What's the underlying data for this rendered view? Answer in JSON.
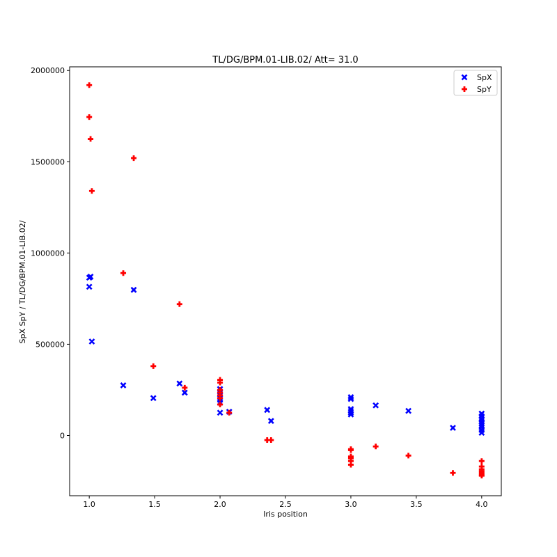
{
  "chart_data": {
    "type": "scatter",
    "title": "TL/DG/BPM.01-LIB.02/ Att= 31.0",
    "xlabel": "Iris position",
    "ylabel": "SpX SpY / TL/DG/BPM.01-LIB.02/",
    "xlim": [
      0.85,
      4.15
    ],
    "ylim": [
      -330000,
      2020000
    ],
    "xticks": [
      1.0,
      1.5,
      2.0,
      2.5,
      3.0,
      3.5,
      4.0
    ],
    "xtick_labels": [
      "1.0",
      "1.5",
      "2.0",
      "2.5",
      "3.0",
      "3.5",
      "4.0"
    ],
    "yticks": [
      0,
      500000,
      1000000,
      1500000,
      2000000
    ],
    "ytick_labels": [
      "0",
      "500000",
      "1000000",
      "1500000",
      "2000000"
    ],
    "grid": false,
    "legend_position": "top-right",
    "series": [
      {
        "name": "SpX",
        "color": "#0000ff",
        "marker": "x",
        "points": [
          [
            1.0,
            865000
          ],
          [
            1.01,
            870000
          ],
          [
            1.0,
            815000
          ],
          [
            1.02,
            515000
          ],
          [
            1.26,
            275000
          ],
          [
            1.34,
            798000
          ],
          [
            1.49,
            205000
          ],
          [
            1.69,
            285000
          ],
          [
            1.73,
            235000
          ],
          [
            2.0,
            255000
          ],
          [
            2.0,
            240000
          ],
          [
            2.0,
            225000
          ],
          [
            2.0,
            210000
          ],
          [
            2.0,
            195000
          ],
          [
            2.0,
            180000
          ],
          [
            2.0,
            125000
          ],
          [
            2.07,
            130000
          ],
          [
            2.36,
            140000
          ],
          [
            2.39,
            80000
          ],
          [
            3.0,
            210000
          ],
          [
            3.0,
            200000
          ],
          [
            3.0,
            145000
          ],
          [
            3.0,
            135000
          ],
          [
            3.0,
            125000
          ],
          [
            3.0,
            115000
          ],
          [
            3.19,
            165000
          ],
          [
            3.44,
            135000
          ],
          [
            3.78,
            42000
          ],
          [
            4.0,
            120000
          ],
          [
            4.0,
            105000
          ],
          [
            4.0,
            90000
          ],
          [
            4.0,
            75000
          ],
          [
            4.0,
            65000
          ],
          [
            4.0,
            55000
          ],
          [
            4.0,
            45000
          ],
          [
            4.0,
            30000
          ],
          [
            4.0,
            15000
          ]
        ]
      },
      {
        "name": "SpY",
        "color": "#ff0000",
        "marker": "+",
        "points": [
          [
            1.0,
            1920000
          ],
          [
            1.0,
            1745000
          ],
          [
            1.01,
            1625000
          ],
          [
            1.02,
            1340000
          ],
          [
            1.26,
            890000
          ],
          [
            1.34,
            1520000
          ],
          [
            1.49,
            380000
          ],
          [
            1.69,
            720000
          ],
          [
            1.73,
            262000
          ],
          [
            2.0,
            305000
          ],
          [
            2.0,
            290000
          ],
          [
            2.0,
            250000
          ],
          [
            2.0,
            235000
          ],
          [
            2.0,
            220000
          ],
          [
            2.0,
            205000
          ],
          [
            2.0,
            170000
          ],
          [
            2.07,
            125000
          ],
          [
            2.36,
            -25000
          ],
          [
            2.39,
            -25000
          ],
          [
            3.0,
            -75000
          ],
          [
            3.0,
            -80000
          ],
          [
            3.0,
            -115000
          ],
          [
            3.0,
            -125000
          ],
          [
            3.0,
            -140000
          ],
          [
            3.0,
            -160000
          ],
          [
            3.19,
            -60000
          ],
          [
            3.44,
            -110000
          ],
          [
            3.78,
            -205000
          ],
          [
            4.0,
            -140000
          ],
          [
            4.0,
            -170000
          ],
          [
            4.0,
            -185000
          ],
          [
            4.0,
            -195000
          ],
          [
            4.0,
            -205000
          ],
          [
            4.0,
            -215000
          ],
          [
            4.0,
            -220000
          ]
        ]
      }
    ]
  }
}
